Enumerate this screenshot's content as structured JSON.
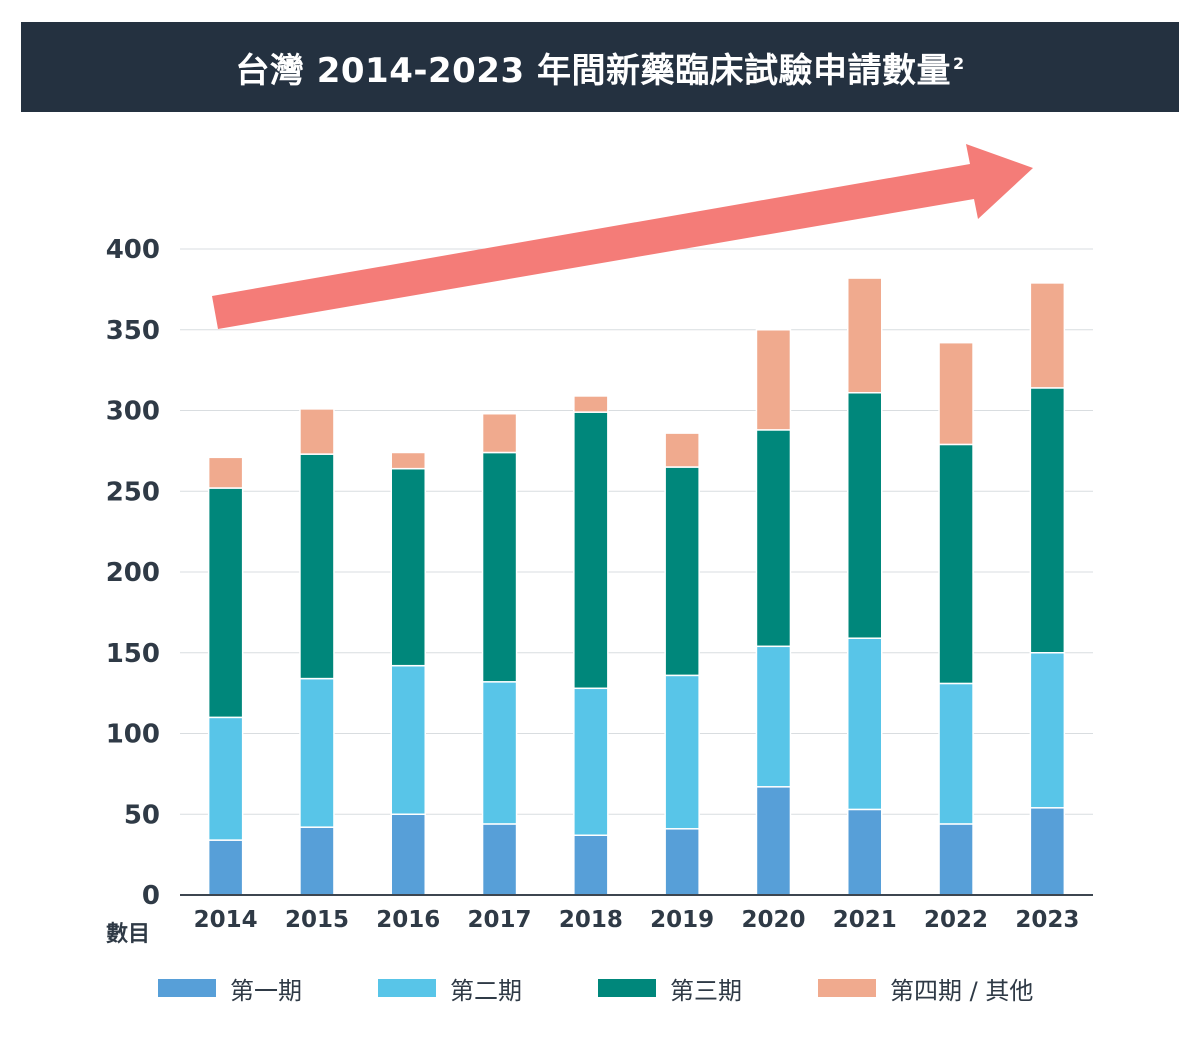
{
  "title": {
    "text": "台灣 2014-2023 年間新藥臨床試驗申請數量",
    "superscript": "2"
  },
  "colors": {
    "title_bg": "#243140",
    "phase1": "#579fd8",
    "phase2": "#58c5e8",
    "phase3": "#00877b",
    "phase4": "#f0aa8e",
    "arrow": "#f47c78",
    "grid": "#d9dde0",
    "axis": "#3d4650"
  },
  "chart_data": {
    "type": "bar",
    "stacked": true,
    "title": "台灣 2014-2023 年間新藥臨床試驗申請數量",
    "xlabel": "",
    "ylabel": "數目",
    "ylim": [
      0,
      400
    ],
    "yticks": [
      0,
      50,
      100,
      150,
      200,
      250,
      300,
      350,
      400
    ],
    "grid": true,
    "legend_position": "bottom",
    "categories": [
      "2014",
      "2015",
      "2016",
      "2017",
      "2018",
      "2019",
      "2020",
      "2021",
      "2022",
      "2023"
    ],
    "series": [
      {
        "name": "第一期",
        "color": "#579fd8",
        "values": [
          34,
          42,
          50,
          44,
          37,
          41,
          67,
          53,
          44,
          54
        ]
      },
      {
        "name": "第二期",
        "color": "#58c5e8",
        "values": [
          76,
          92,
          92,
          88,
          91,
          95,
          87,
          106,
          87,
          96
        ]
      },
      {
        "name": "第三期",
        "color": "#00877b",
        "values": [
          142,
          139,
          122,
          142,
          171,
          129,
          134,
          152,
          148,
          164
        ]
      },
      {
        "name": "第四期 / 其他",
        "color": "#f0aa8e",
        "values": [
          19,
          28,
          10,
          24,
          10,
          21,
          62,
          71,
          63,
          65
        ]
      }
    ],
    "annotations": [
      "upward-trend-arrow"
    ]
  }
}
